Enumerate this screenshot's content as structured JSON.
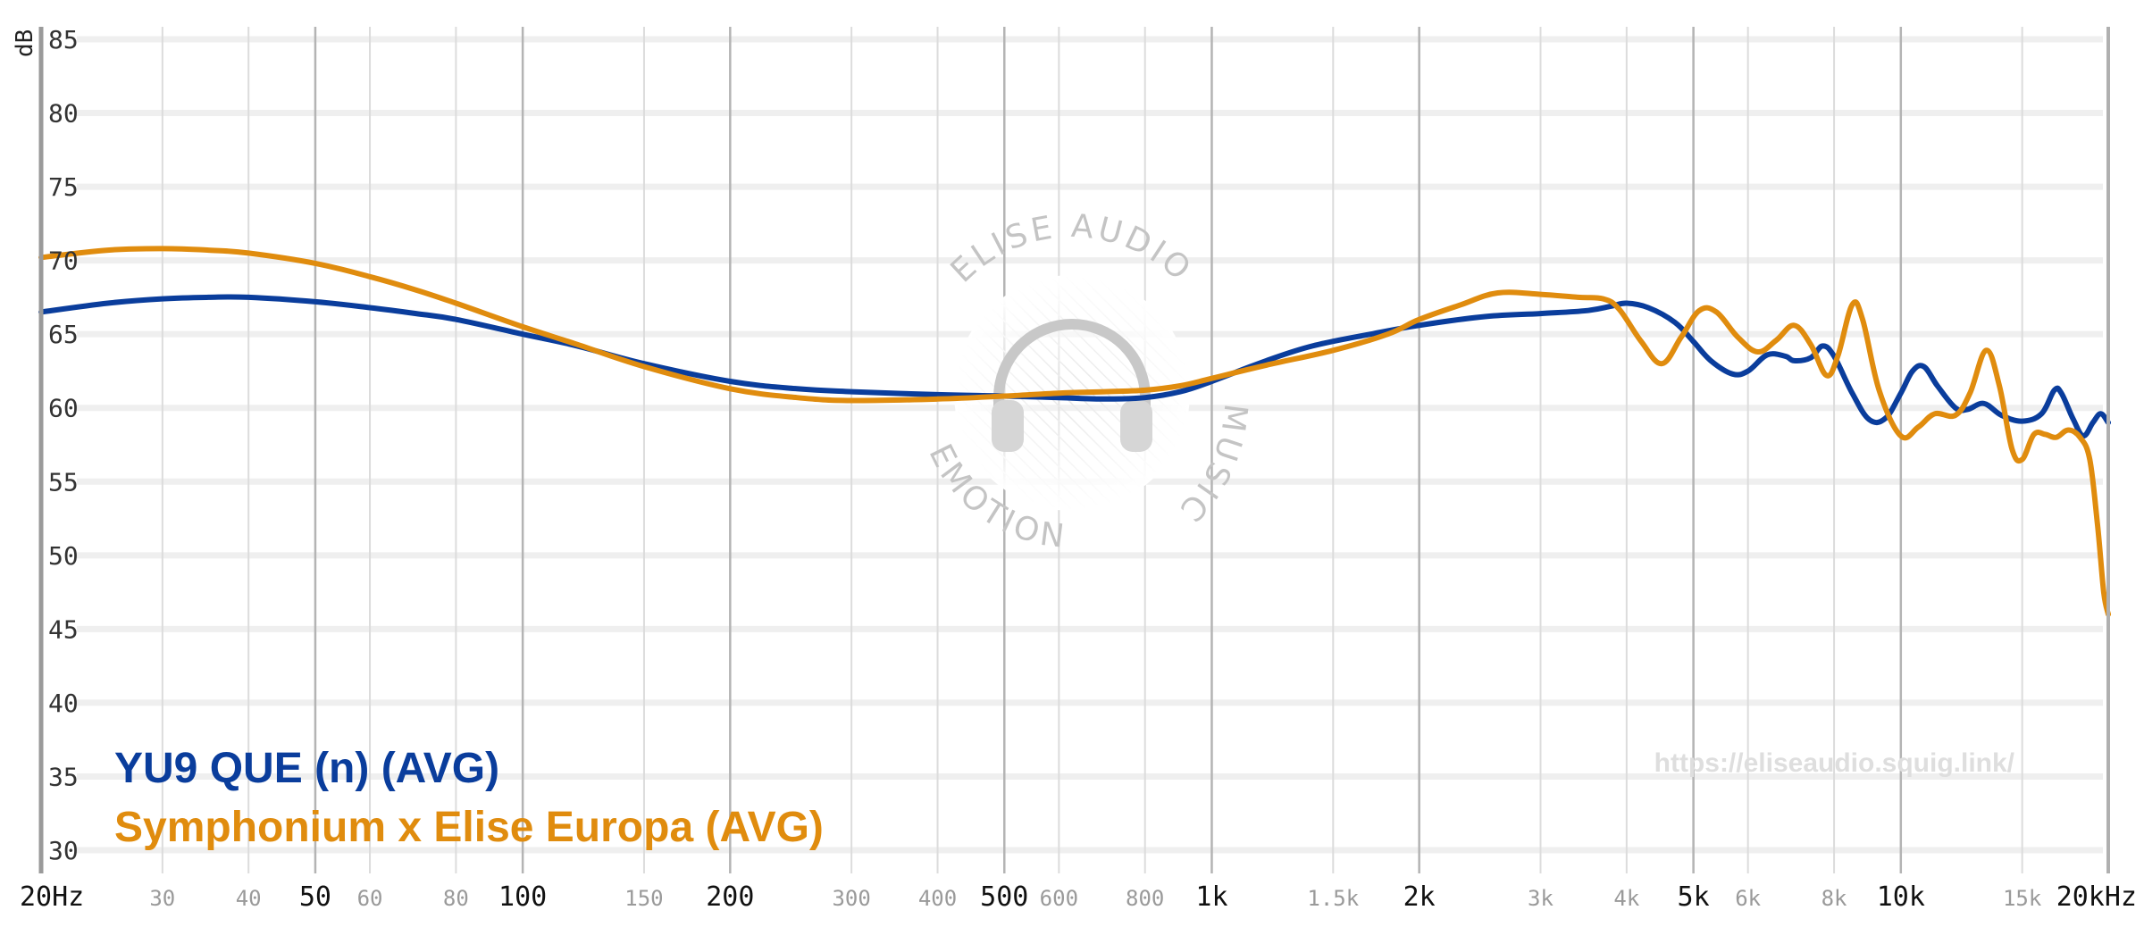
{
  "chart_data": {
    "type": "line",
    "ylabel": "dB",
    "ylim": [
      30,
      85
    ],
    "xscale": "log",
    "xlim": [
      20,
      20000
    ],
    "grid": true,
    "legend_position": "bottom-left",
    "y_ticks": [
      {
        "value": 30,
        "label": "30"
      },
      {
        "value": 35,
        "label": "35"
      },
      {
        "value": 40,
        "label": "40"
      },
      {
        "value": 45,
        "label": "45"
      },
      {
        "value": 50,
        "label": "50"
      },
      {
        "value": 55,
        "label": "55"
      },
      {
        "value": 60,
        "label": "60"
      },
      {
        "value": 65,
        "label": "65"
      },
      {
        "value": 70,
        "label": "70"
      },
      {
        "value": 75,
        "label": "75"
      },
      {
        "value": 80,
        "label": "80"
      },
      {
        "value": 85,
        "label": "85"
      }
    ],
    "x_ticks": [
      {
        "value": 20,
        "label": "20Hz",
        "major": true
      },
      {
        "value": 30,
        "label": "30",
        "major": false
      },
      {
        "value": 40,
        "label": "40",
        "major": false
      },
      {
        "value": 50,
        "label": "50",
        "major": true
      },
      {
        "value": 60,
        "label": "60",
        "major": false
      },
      {
        "value": 80,
        "label": "80",
        "major": false
      },
      {
        "value": 100,
        "label": "100",
        "major": true
      },
      {
        "value": 150,
        "label": "150",
        "major": false
      },
      {
        "value": 200,
        "label": "200",
        "major": true
      },
      {
        "value": 300,
        "label": "300",
        "major": false
      },
      {
        "value": 400,
        "label": "400",
        "major": false
      },
      {
        "value": 500,
        "label": "500",
        "major": true
      },
      {
        "value": 600,
        "label": "600",
        "major": false
      },
      {
        "value": 800,
        "label": "800",
        "major": false
      },
      {
        "value": 1000,
        "label": "1k",
        "major": true
      },
      {
        "value": 1500,
        "label": "1.5k",
        "major": false
      },
      {
        "value": 2000,
        "label": "2k",
        "major": true
      },
      {
        "value": 3000,
        "label": "3k",
        "major": false
      },
      {
        "value": 4000,
        "label": "4k",
        "major": false
      },
      {
        "value": 5000,
        "label": "5k",
        "major": true
      },
      {
        "value": 6000,
        "label": "6k",
        "major": false
      },
      {
        "value": 8000,
        "label": "8k",
        "major": false
      },
      {
        "value": 10000,
        "label": "10k",
        "major": true
      },
      {
        "value": 15000,
        "label": "15k",
        "major": false
      },
      {
        "value": 20000,
        "label": "20kHz",
        "major": true
      }
    ],
    "series": [
      {
        "name": "YU9 QUE (n) (AVG)",
        "color": "#0a3d9c",
        "points": [
          [
            20,
            66.5
          ],
          [
            25,
            67.1
          ],
          [
            30,
            67.4
          ],
          [
            35,
            67.5
          ],
          [
            40,
            67.5
          ],
          [
            50,
            67.2
          ],
          [
            60,
            66.8
          ],
          [
            70,
            66.4
          ],
          [
            80,
            66.0
          ],
          [
            100,
            65.0
          ],
          [
            120,
            64.2
          ],
          [
            150,
            63.0
          ],
          [
            200,
            61.8
          ],
          [
            250,
            61.3
          ],
          [
            300,
            61.1
          ],
          [
            400,
            60.9
          ],
          [
            500,
            60.8
          ],
          [
            600,
            60.7
          ],
          [
            700,
            60.6
          ],
          [
            800,
            60.7
          ],
          [
            900,
            61.1
          ],
          [
            1000,
            61.8
          ],
          [
            1200,
            63.2
          ],
          [
            1400,
            64.2
          ],
          [
            1700,
            65.0
          ],
          [
            2000,
            65.6
          ],
          [
            2500,
            66.2
          ],
          [
            3000,
            66.4
          ],
          [
            3500,
            66.6
          ],
          [
            3800,
            66.9
          ],
          [
            4000,
            67.1
          ],
          [
            4300,
            66.8
          ],
          [
            4700,
            65.8
          ],
          [
            5000,
            64.5
          ],
          [
            5300,
            63.2
          ],
          [
            5700,
            62.3
          ],
          [
            6000,
            62.5
          ],
          [
            6400,
            63.6
          ],
          [
            6800,
            63.5
          ],
          [
            7000,
            63.2
          ],
          [
            7400,
            63.4
          ],
          [
            7700,
            64.2
          ],
          [
            8000,
            63.5
          ],
          [
            8500,
            61.0
          ],
          [
            9000,
            59.2
          ],
          [
            9500,
            59.3
          ],
          [
            10000,
            61.0
          ],
          [
            10400,
            62.5
          ],
          [
            10800,
            62.8
          ],
          [
            11300,
            61.5
          ],
          [
            12000,
            60.0
          ],
          [
            12500,
            59.9
          ],
          [
            13200,
            60.3
          ],
          [
            14000,
            59.5
          ],
          [
            15000,
            59.1
          ],
          [
            16000,
            59.6
          ],
          [
            16700,
            61.2
          ],
          [
            17100,
            61.0
          ],
          [
            17800,
            59.2
          ],
          [
            18400,
            58.1
          ],
          [
            19000,
            59.0
          ],
          [
            19500,
            59.6
          ],
          [
            20000,
            59.0
          ]
        ]
      },
      {
        "name": "Symphonium x Elise Europa (AVG)",
        "color": "#e08c0e",
        "points": [
          [
            20,
            70.2
          ],
          [
            25,
            70.7
          ],
          [
            30,
            70.8
          ],
          [
            35,
            70.7
          ],
          [
            40,
            70.5
          ],
          [
            50,
            69.8
          ],
          [
            60,
            68.9
          ],
          [
            70,
            68.0
          ],
          [
            80,
            67.1
          ],
          [
            100,
            65.5
          ],
          [
            120,
            64.3
          ],
          [
            150,
            62.8
          ],
          [
            200,
            61.3
          ],
          [
            250,
            60.7
          ],
          [
            300,
            60.5
          ],
          [
            400,
            60.6
          ],
          [
            500,
            60.8
          ],
          [
            600,
            61.0
          ],
          [
            700,
            61.1
          ],
          [
            800,
            61.2
          ],
          [
            900,
            61.5
          ],
          [
            1000,
            62.0
          ],
          [
            1200,
            62.9
          ],
          [
            1500,
            63.9
          ],
          [
            1800,
            65.0
          ],
          [
            2000,
            66.0
          ],
          [
            2300,
            67.0
          ],
          [
            2600,
            67.8
          ],
          [
            3000,
            67.7
          ],
          [
            3400,
            67.5
          ],
          [
            3700,
            67.4
          ],
          [
            3900,
            66.7
          ],
          [
            4200,
            64.5
          ],
          [
            4500,
            63.0
          ],
          [
            4800,
            64.8
          ],
          [
            5100,
            66.6
          ],
          [
            5400,
            66.5
          ],
          [
            5800,
            64.8
          ],
          [
            6200,
            63.8
          ],
          [
            6600,
            64.6
          ],
          [
            7000,
            65.6
          ],
          [
            7400,
            64.3
          ],
          [
            7800,
            62.2
          ],
          [
            8100,
            63.5
          ],
          [
            8500,
            67.0
          ],
          [
            8800,
            66.0
          ],
          [
            9300,
            61.2
          ],
          [
            10000,
            58.1
          ],
          [
            10600,
            58.7
          ],
          [
            11200,
            59.6
          ],
          [
            12000,
            59.5
          ],
          [
            12600,
            61.0
          ],
          [
            13300,
            63.9
          ],
          [
            13900,
            61.5
          ],
          [
            14500,
            57.2
          ],
          [
            15000,
            56.5
          ],
          [
            15600,
            58.2
          ],
          [
            16200,
            58.2
          ],
          [
            16800,
            58.0
          ],
          [
            17500,
            58.5
          ],
          [
            18200,
            58.0
          ],
          [
            18800,
            56.5
          ],
          [
            19300,
            52.0
          ],
          [
            19700,
            47.5
          ],
          [
            20000,
            46.0
          ]
        ]
      }
    ]
  },
  "watermark": {
    "top_text": "ELISE AUDIO",
    "right_text": "MUSIC",
    "bottom_text": "EMOTION",
    "icon": "headphones-icon"
  },
  "url": "https://eliseaudio.squig.link/"
}
